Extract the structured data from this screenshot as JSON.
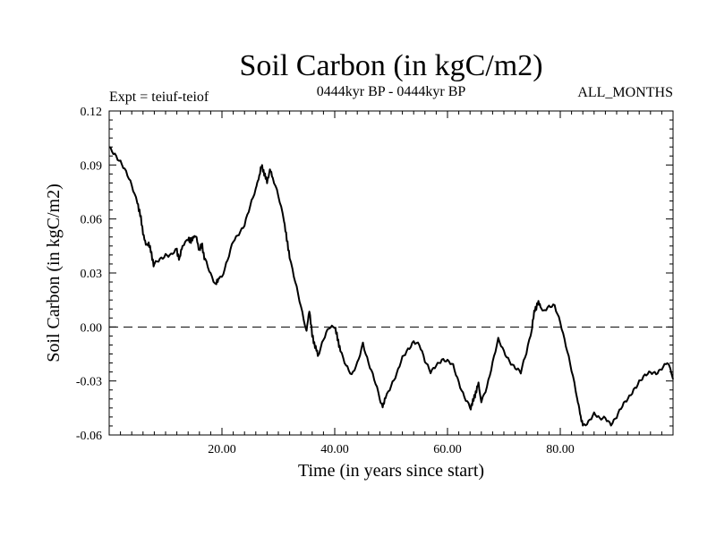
{
  "chart_data": {
    "type": "line",
    "title": "Soil Carbon (in kgC/m2)",
    "subtitle_left": "Expt = teiuf-teiof",
    "subtitle_center": "0444kyr BP - 0444kyr BP",
    "subtitle_right": "ALL_MONTHS",
    "xlabel": "Time (in years since start)",
    "ylabel": "Soil Carbon (in kgC/m2)",
    "xlim": [
      0,
      100
    ],
    "ylim": [
      -0.06,
      0.12
    ],
    "x_ticks": [
      20,
      40,
      60,
      80
    ],
    "x_tick_labels": [
      "20.00",
      "40.00",
      "60.00",
      "80.00"
    ],
    "y_ticks": [
      -0.06,
      -0.03,
      0.0,
      0.03,
      0.06,
      0.09,
      0.12
    ],
    "y_tick_labels": [
      "-0.06",
      "-0.03",
      "0.00",
      "0.03",
      "0.06",
      "0.09",
      "0.12"
    ],
    "reference_line": {
      "y": 0.0,
      "style": "dashed"
    },
    "series": [
      {
        "name": "Soil Carbon",
        "x": [
          0,
          1,
          2,
          3,
          4,
          5,
          5.5,
          6,
          6.5,
          7,
          7.5,
          8,
          9,
          10,
          11,
          12,
          12.5,
          13,
          14,
          14.5,
          15,
          15.5,
          16,
          16.5,
          17,
          18,
          19,
          19.5,
          20,
          21,
          22,
          23,
          24,
          25,
          26,
          26.5,
          27,
          27.5,
          28,
          28.5,
          29,
          30,
          31,
          31.5,
          32,
          33,
          34,
          35,
          35.5,
          36,
          36.5,
          37,
          38,
          39,
          40,
          40.5,
          41,
          42,
          43,
          44,
          45,
          46,
          47,
          48,
          48.5,
          49,
          50,
          51,
          52,
          53,
          54,
          55,
          56,
          57,
          58,
          59,
          60,
          61,
          62,
          63,
          64,
          64.5,
          65,
          65.5,
          66,
          67,
          68,
          69,
          70,
          71,
          72,
          73,
          74,
          75,
          75.5,
          76,
          76.5,
          77,
          78,
          79,
          80,
          81,
          82,
          83,
          83.5,
          84,
          85,
          86,
          87,
          88,
          89,
          90,
          91,
          92,
          93,
          94,
          95,
          96,
          97,
          98,
          99,
          100
        ],
        "values": [
          0.1,
          0.097,
          0.092,
          0.085,
          0.078,
          0.07,
          0.062,
          0.053,
          0.045,
          0.047,
          0.04,
          0.034,
          0.038,
          0.041,
          0.04,
          0.042,
          0.038,
          0.045,
          0.05,
          0.047,
          0.051,
          0.049,
          0.043,
          0.045,
          0.037,
          0.03,
          0.024,
          0.028,
          0.027,
          0.036,
          0.048,
          0.053,
          0.057,
          0.066,
          0.076,
          0.083,
          0.089,
          0.086,
          0.08,
          0.088,
          0.082,
          0.072,
          0.06,
          0.048,
          0.04,
          0.025,
          0.01,
          -0.003,
          0.01,
          -0.005,
          -0.01,
          -0.016,
          -0.008,
          -0.001,
          0.001,
          -0.007,
          -0.012,
          -0.022,
          -0.028,
          -0.02,
          -0.008,
          -0.02,
          -0.03,
          -0.04,
          -0.045,
          -0.038,
          -0.032,
          -0.027,
          -0.018,
          -0.012,
          -0.007,
          -0.01,
          -0.02,
          -0.025,
          -0.02,
          -0.018,
          -0.02,
          -0.022,
          -0.03,
          -0.038,
          -0.045,
          -0.042,
          -0.036,
          -0.032,
          -0.041,
          -0.032,
          -0.02,
          -0.008,
          -0.014,
          -0.018,
          -0.022,
          -0.026,
          -0.015,
          0.0,
          0.01,
          0.013,
          0.012,
          0.008,
          0.01,
          0.012,
          0.004,
          -0.01,
          -0.025,
          -0.04,
          -0.048,
          -0.054,
          -0.052,
          -0.049,
          -0.052,
          -0.05,
          -0.053,
          -0.05,
          -0.045,
          -0.04,
          -0.034,
          -0.03,
          -0.028,
          -0.026,
          -0.025,
          -0.022,
          -0.02,
          -0.029
        ]
      }
    ]
  }
}
